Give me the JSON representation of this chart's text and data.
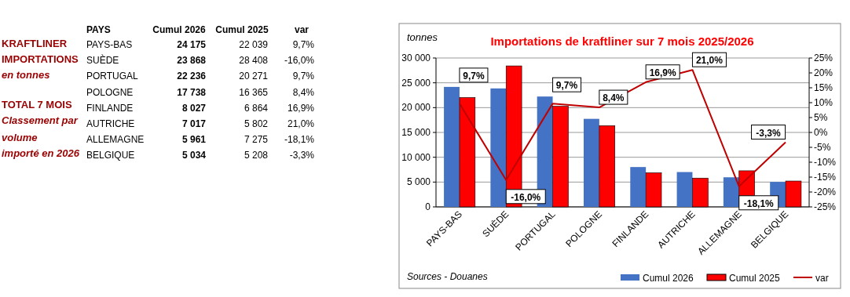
{
  "chart_data": [
    {
      "type": "other",
      "annotations": [
        "KRAFTLINER",
        "IMPORTATIONS",
        "en tonnes",
        "TOTAL 7 MOIS",
        "Classement par",
        "volume",
        "importé en 2026",
        "PAYS",
        "Cumul 2026",
        "Cumul 2025",
        "var",
        "PAYS-BAS",
        "24 175",
        "22 039",
        "9,7%",
        "SUÈDE",
        "23 868",
        "28 408",
        "-16,0%",
        "PORTUGAL",
        "22 236",
        "20 271",
        "9,7%",
        "POLOGNE",
        "17 738",
        "16 365",
        "8,4%",
        "FINLANDE",
        "8 027",
        "6 864",
        "16,9%",
        "AUTRICHE",
        "7 017",
        "5 802",
        "21,0%",
        "ALLEMAGNE",
        "5 961",
        "7 275",
        "-18,1%",
        "BELGIQUE",
        "5 034",
        "5 208",
        "-3,3%"
      ]
    },
    {
      "type": "bar",
      "title": "Importations de kraftliner sur 7 mois 2025/2026",
      "ylabel": "tonnes",
      "categories": [
        "PAYS-BAS",
        "SUÈDE",
        "PORTUGAL",
        "POLOGNE",
        "FINLANDE",
        "AUTRICHE",
        "ALLEMAGNE",
        "BELGIQUE"
      ],
      "series": [
        {
          "name": "Cumul 2026",
          "color": "#4472c4",
          "values": [
            24175,
            23868,
            22236,
            17738,
            8027,
            7017,
            5961,
            5034
          ]
        },
        {
          "name": "Cumul 2025",
          "color": "#ff0000",
          "values": [
            22039,
            28408,
            20271,
            16365,
            6864,
            5802,
            7275,
            5208
          ]
        },
        {
          "name": "var",
          "type": "line",
          "axis": "y2",
          "color": "#c00000",
          "values": [
            9.7,
            -16.0,
            9.7,
            8.4,
            16.9,
            21.0,
            -18.1,
            -3.3
          ],
          "value_labels": [
            "9,7%",
            "-16,0%",
            "9,7%",
            "8,4%",
            "16,9%",
            "21,0%",
            "-18,1%",
            "-3,3%"
          ]
        }
      ],
      "ylim": [
        0,
        30000
      ],
      "yticks": [
        {
          "value": 0,
          "label": "0"
        },
        {
          "value": 5000,
          "label": "5 000"
        },
        {
          "value": 10000,
          "label": "10 000"
        },
        {
          "value": 15000,
          "label": "15 000"
        },
        {
          "value": 20000,
          "label": "20 000"
        },
        {
          "value": 25000,
          "label": "25 000"
        },
        {
          "value": 30000,
          "label": "30 000"
        }
      ],
      "y2lim": [
        -25,
        25
      ],
      "y2ticks": [
        {
          "value": -25,
          "label": "-25%"
        },
        {
          "value": -20,
          "label": "-20%"
        },
        {
          "value": -15,
          "label": "-15%"
        },
        {
          "value": -10,
          "label": "-10%"
        },
        {
          "value": -5,
          "label": "-5%"
        },
        {
          "value": 0,
          "label": "0%"
        },
        {
          "value": 5,
          "label": "5%"
        },
        {
          "value": 10,
          "label": "10%"
        },
        {
          "value": 15,
          "label": "15%"
        },
        {
          "value": 20,
          "label": "20%"
        },
        {
          "value": 25,
          "label": "25%"
        }
      ],
      "grid": "y",
      "legend": "bottom right",
      "marker": "none",
      "line_style": "solid",
      "annotations": [
        "Sources - Douanes"
      ]
    }
  ]
}
